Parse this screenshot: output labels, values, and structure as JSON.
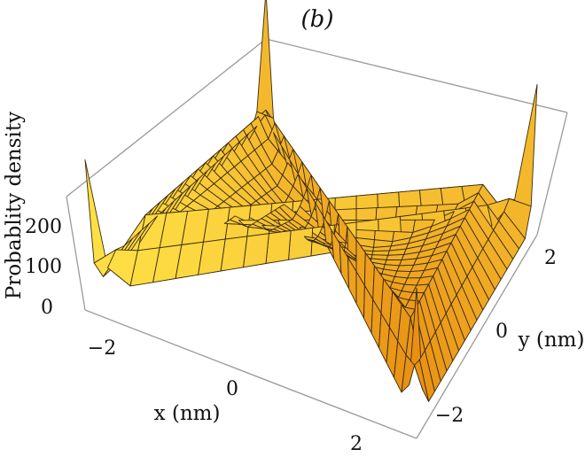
{
  "chart_data": {
    "type": "surface3d",
    "panel_label": "(b)",
    "zlabel": "Probablity density",
    "xlabel": "x (nm)",
    "ylabel": "y (nm)",
    "xlim": [
      -3,
      3
    ],
    "ylim": [
      -3,
      3
    ],
    "zlim": [
      0,
      280
    ],
    "x_ticks": [
      "−2",
      "0",
      "2"
    ],
    "y_ticks": [
      "−2",
      "0",
      "2"
    ],
    "z_ticks": [
      "0",
      "100",
      "200"
    ],
    "surface_color": "#f2a515",
    "mesh_color": "#3a2a10",
    "box_color": "#999999",
    "mesh_lines": 20,
    "features": {
      "bowl_rim_height": 150,
      "bowl_center_height": 70,
      "corner_peak_height": 270
    }
  }
}
